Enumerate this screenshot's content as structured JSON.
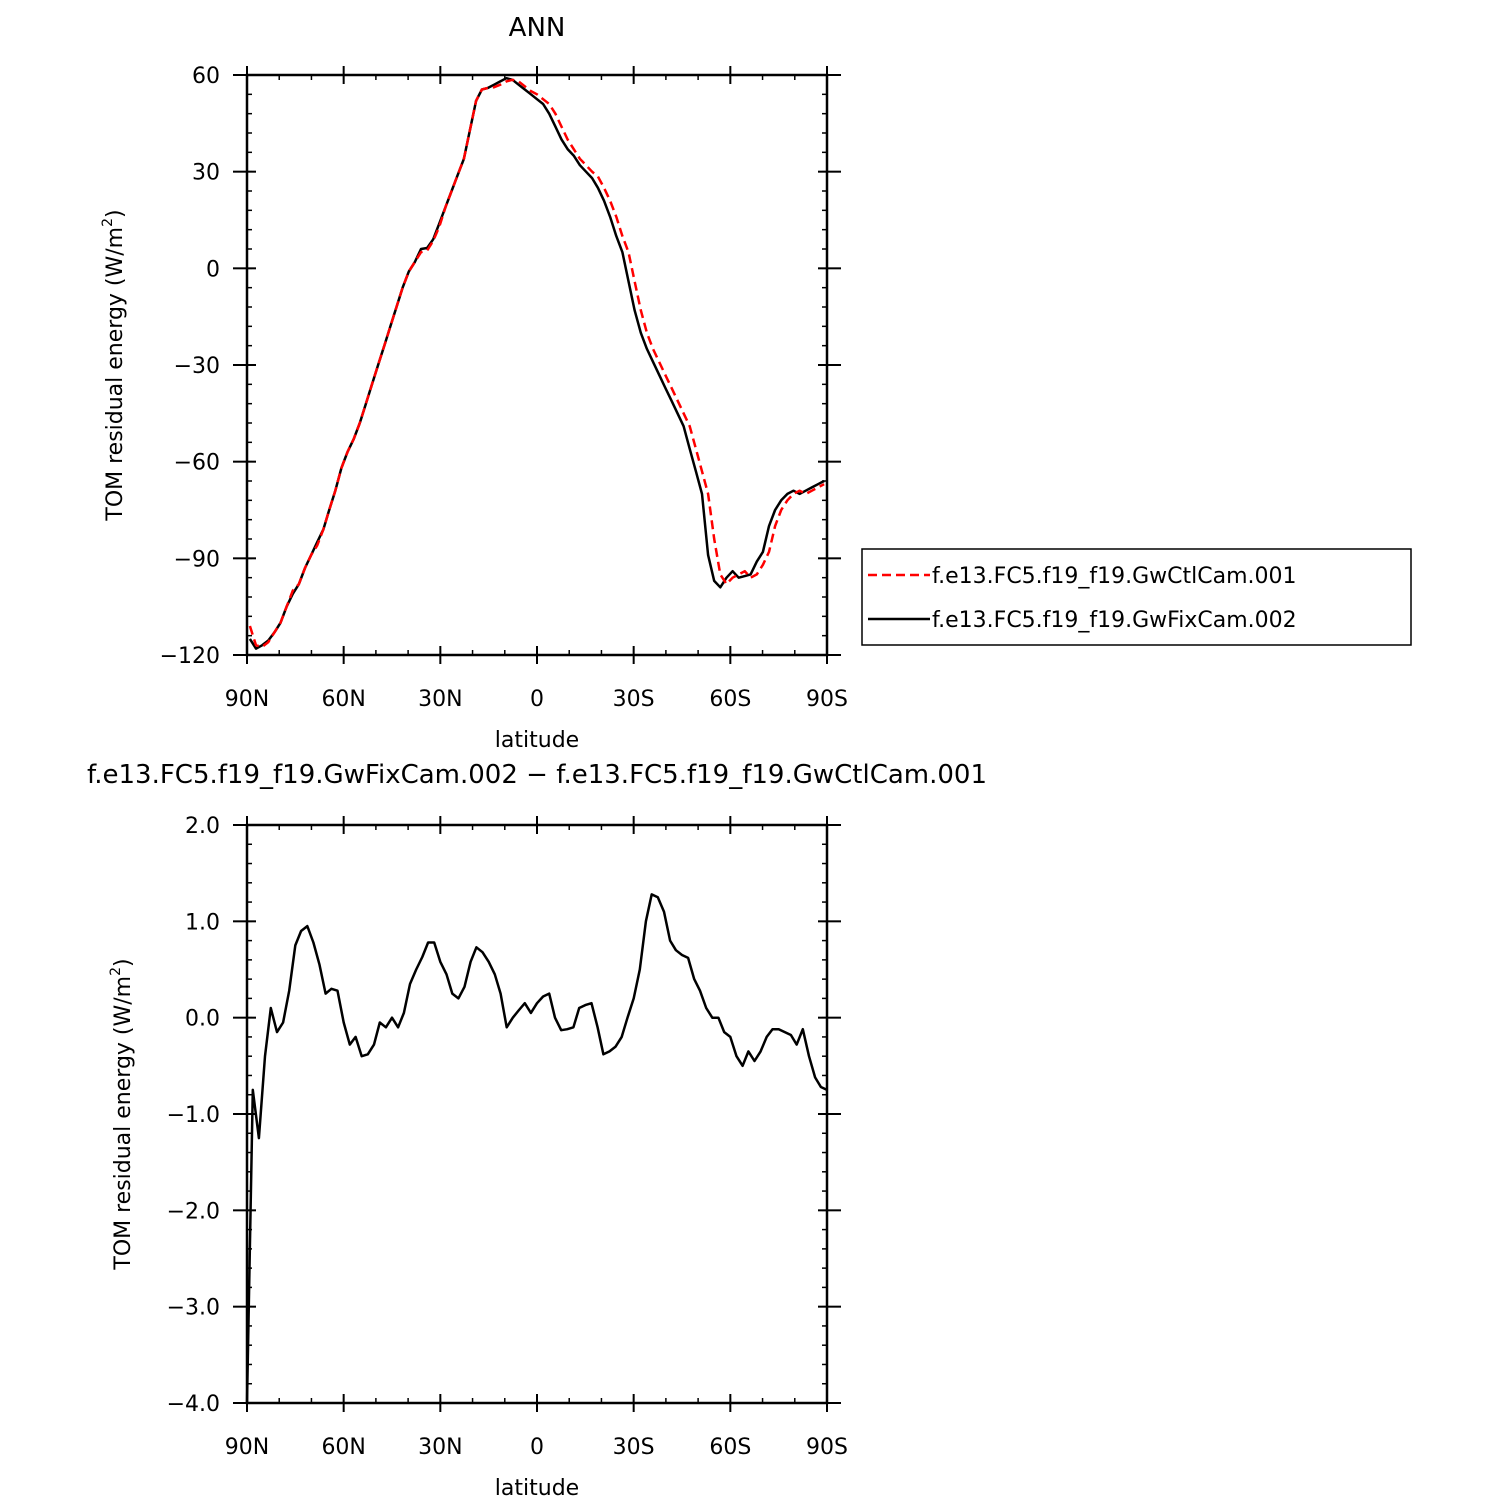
{
  "chart_data": [
    {
      "type": "line",
      "title": "ANN",
      "xlabel": "latitude",
      "ylabel": "TOM residual energy (W/m",
      "ylabel_sup": "2",
      "ylabel_close": ")",
      "xlim": [
        90,
        -90
      ],
      "ylim": [
        -120,
        60
      ],
      "x_ticks": [
        90,
        60,
        30,
        0,
        -30,
        -60,
        -90
      ],
      "x_tick_labels": [
        "90N",
        "60N",
        "30N",
        "0",
        "30S",
        "60S",
        "90S"
      ],
      "y_ticks": [
        -120,
        -90,
        -60,
        -30,
        0,
        30,
        60
      ],
      "y_tick_labels": [
        "−120",
        "−90",
        "−60",
        "−30",
        "0",
        "30",
        "60"
      ],
      "grid": false,
      "legend_position": "right",
      "x": [
        89.1,
        87.2,
        85.3,
        83.4,
        81.5,
        79.6,
        77.7,
        75.8,
        73.9,
        72.0,
        70.1,
        68.2,
        66.3,
        64.5,
        62.6,
        60.7,
        58.8,
        56.9,
        55.0,
        53.1,
        51.2,
        49.3,
        47.4,
        45.5,
        43.6,
        41.7,
        39.8,
        37.9,
        36.0,
        34.1,
        32.2,
        30.3,
        28.4,
        26.5,
        24.6,
        22.7,
        20.8,
        18.9,
        17.1,
        15.2,
        13.3,
        11.4,
        9.5,
        7.6,
        5.7,
        3.8,
        1.9,
        0,
        -1.9,
        -3.8,
        -5.7,
        -7.6,
        -9.5,
        -11.4,
        -13.3,
        -15.2,
        -17.1,
        -18.9,
        -20.8,
        -22.7,
        -24.6,
        -26.5,
        -28.4,
        -30.3,
        -32.2,
        -34.1,
        -36.0,
        -37.9,
        -39.8,
        -41.7,
        -43.6,
        -45.5,
        -47.4,
        -49.3,
        -51.2,
        -53.1,
        -55.0,
        -56.9,
        -58.8,
        -60.7,
        -62.6,
        -64.5,
        -66.3,
        -68.2,
        -70.1,
        -72.0,
        -73.9,
        -75.8,
        -77.7,
        -79.6,
        -81.5,
        -83.4,
        -85.3,
        -87.2,
        -89.1
      ],
      "series": [
        {
          "name": "f.e13.FC5.f19_f19.GwCtlCam.001",
          "color": "#ff0000",
          "dash": "dashed",
          "values": [
            -111,
            -117,
            -117.5,
            -116,
            -113,
            -110,
            -105,
            -100,
            -98,
            -93,
            -89,
            -86,
            -81,
            -75,
            -69,
            -62,
            -57,
            -53,
            -48,
            -42,
            -36,
            -30,
            -24,
            -18,
            -12,
            -6,
            -1,
            2,
            5,
            5.5,
            8.5,
            13,
            19,
            24,
            29,
            34,
            43,
            52,
            55.5,
            56,
            56.2,
            57,
            58,
            58.5,
            58,
            56.5,
            55,
            54,
            52.5,
            51,
            48,
            44,
            40,
            37,
            34,
            32,
            30,
            28.5,
            25,
            21,
            16,
            10,
            5,
            -4,
            -13,
            -20,
            -25,
            -29,
            -33,
            -37,
            -41,
            -45,
            -49,
            -56,
            -63,
            -70,
            -84,
            -95,
            -98,
            -96,
            -95,
            -94,
            -96,
            -95,
            -92,
            -88,
            -80,
            -75,
            -72,
            -70,
            -69,
            -70,
            -69,
            -68,
            -67
          ]
        },
        {
          "name": "f.e13.FC5.f19_f19.GwFixCam.002",
          "color": "#000000",
          "dash": "solid",
          "values": [
            -115,
            -118,
            -117,
            -115.5,
            -113,
            -110,
            -105,
            -101,
            -98,
            -93,
            -89,
            -85,
            -81,
            -75,
            -69,
            -62,
            -57,
            -53,
            -48,
            -42,
            -36,
            -30,
            -24,
            -18,
            -12,
            -6,
            -1,
            2,
            6,
            6.3,
            9,
            14,
            19,
            24,
            29,
            34,
            43,
            52,
            55.5,
            56,
            57,
            58,
            59,
            58.5,
            57,
            55.5,
            54,
            52.5,
            51,
            48,
            44,
            40,
            37,
            35,
            32,
            30,
            28,
            25,
            21,
            16,
            10,
            5,
            -4,
            -13,
            -20,
            -25,
            -29,
            -33,
            -37,
            -41,
            -45,
            -49,
            -56,
            -63,
            -70,
            -89,
            -97,
            -99,
            -96,
            -94,
            -96,
            -95.5,
            -95,
            -91,
            -88,
            -80,
            -75,
            -72,
            -70,
            -69,
            -70,
            -69,
            -68,
            -67,
            -66
          ]
        }
      ]
    },
    {
      "type": "line",
      "title": "f.e13.FC5.f19_f19.GwFixCam.002 − f.e13.FC5.f19_f19.GwCtlCam.001",
      "xlabel": "latitude",
      "ylabel": "TOM residual energy (W/m",
      "ylabel_sup": "2",
      "ylabel_close": ")",
      "xlim": [
        90,
        -90
      ],
      "ylim": [
        -4,
        2
      ],
      "x_ticks": [
        90,
        60,
        30,
        0,
        -30,
        -60,
        -90
      ],
      "x_tick_labels": [
        "90N",
        "60N",
        "30N",
        "0",
        "30S",
        "60S",
        "90S"
      ],
      "y_ticks": [
        -4,
        -3,
        -2,
        -1,
        0,
        1,
        2
      ],
      "y_tick_labels": [
        "−4.0",
        "−3.0",
        "−2.0",
        "−1.0",
        "0.0",
        "1.0",
        "2.0"
      ],
      "grid": false,
      "series": [
        {
          "color": "#000000",
          "dash": "solid",
          "x": [
            90,
            88.2,
            86.3,
            84.4,
            82.6,
            80.7,
            78.8,
            76.9,
            75.0,
            73.2,
            71.3,
            69.4,
            67.5,
            65.6,
            63.8,
            61.9,
            60.0,
            58.1,
            56.3,
            54.4,
            52.5,
            50.6,
            48.8,
            46.9,
            45.0,
            43.1,
            41.3,
            39.4,
            37.5,
            35.6,
            33.8,
            31.9,
            30.0,
            28.1,
            26.3,
            24.4,
            22.5,
            20.6,
            18.8,
            16.9,
            15.0,
            13.1,
            11.3,
            9.4,
            7.5,
            5.6,
            3.8,
            1.9,
            0,
            -1.9,
            -3.8,
            -5.6,
            -7.5,
            -9.4,
            -11.3,
            -13.1,
            -15.0,
            -16.9,
            -18.8,
            -20.6,
            -22.5,
            -24.4,
            -26.3,
            -28.1,
            -30.0,
            -31.9,
            -33.8,
            -35.6,
            -37.5,
            -39.4,
            -41.3,
            -43.1,
            -45.0,
            -46.9,
            -48.8,
            -50.6,
            -52.5,
            -54.4,
            -56.3,
            -58.1,
            -60.0,
            -61.9,
            -63.8,
            -65.6,
            -67.5,
            -69.4,
            -71.3,
            -73.1,
            -75.0,
            -76.9,
            -78.8,
            -80.6,
            -82.5,
            -84.4,
            -86.3,
            -88.1,
            -90.0
          ],
          "values": [
            -4.0,
            -0.75,
            -1.25,
            -0.4,
            0.1,
            -0.15,
            -0.05,
            0.28,
            0.75,
            0.9,
            0.95,
            0.78,
            0.55,
            0.25,
            0.3,
            0.28,
            -0.05,
            -0.28,
            -0.2,
            -0.4,
            -0.38,
            -0.28,
            -0.05,
            -0.1,
            0.0,
            -0.1,
            0.05,
            0.35,
            0.5,
            0.63,
            0.78,
            0.78,
            0.58,
            0.45,
            0.25,
            0.2,
            0.32,
            0.58,
            0.73,
            0.68,
            0.58,
            0.45,
            0.25,
            -0.1,
            0.0,
            0.08,
            0.15,
            0.05,
            0.15,
            0.22,
            0.25,
            0.0,
            -0.13,
            -0.12,
            -0.1,
            0.1,
            0.13,
            0.15,
            -0.1,
            -0.38,
            -0.35,
            -0.3,
            -0.2,
            0.0,
            0.2,
            0.5,
            1.0,
            1.28,
            1.25,
            1.1,
            0.8,
            0.7,
            0.65,
            0.62,
            0.4,
            0.28,
            0.1,
            0.0,
            0.0,
            -0.15,
            -0.2,
            -0.4,
            -0.5,
            -0.35,
            -0.45,
            -0.35,
            -0.2,
            -0.12,
            -0.12,
            -0.15,
            -0.18,
            -0.28,
            -0.12,
            -0.4,
            -0.62,
            -0.72,
            -0.75
          ]
        }
      ]
    }
  ]
}
